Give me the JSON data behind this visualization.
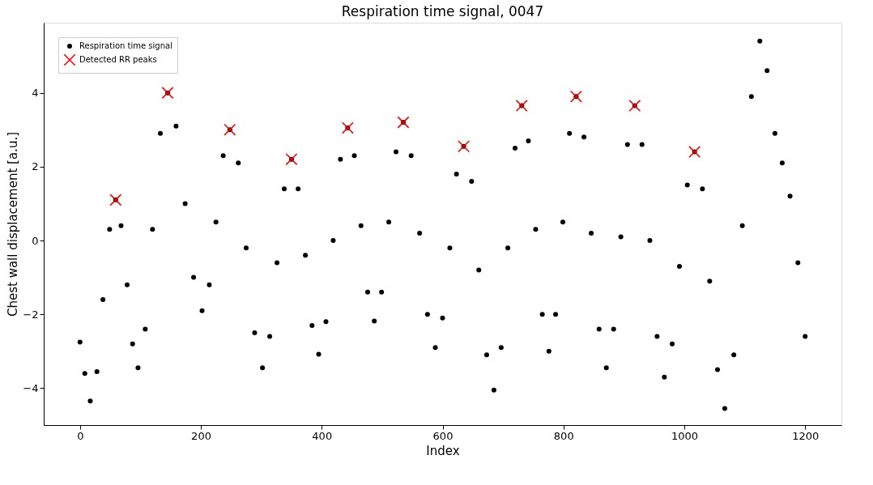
{
  "chart_data": {
    "type": "scatter",
    "title": "Respiration time signal, 0047",
    "xlabel": "Index",
    "ylabel": "Chest wall displacement [a.u.]",
    "xlim": [
      -60,
      1260
    ],
    "ylim": [
      -5.0,
      5.9
    ],
    "xticks": [
      0,
      200,
      400,
      600,
      800,
      1000,
      1200
    ],
    "yticks": [
      -4,
      -2,
      0,
      2,
      4
    ],
    "grid": false,
    "legend": "top left",
    "series": [
      {
        "name": "Respiration time signal",
        "color": "#000000",
        "marker": "circle",
        "x": [
          0,
          8,
          17,
          28,
          38,
          49,
          59,
          68,
          78,
          87,
          96,
          108,
          120,
          133,
          145,
          159,
          174,
          188,
          202,
          214,
          225,
          237,
          248,
          262,
          275,
          289,
          302,
          314,
          326,
          338,
          350,
          361,
          373,
          384,
          395,
          407,
          419,
          431,
          443,
          454,
          465,
          476,
          487,
          499,
          511,
          523,
          535,
          548,
          562,
          575,
          588,
          600,
          612,
          623,
          635,
          648,
          660,
          673,
          685,
          697,
          708,
          720,
          731,
          742,
          754,
          765,
          776,
          787,
          799,
          810,
          821,
          834,
          846,
          859,
          871,
          883,
          895,
          906,
          918,
          930,
          943,
          955,
          967,
          980,
          992,
          1005,
          1017,
          1030,
          1042,
          1055,
          1067,
          1082,
          1096,
          1111,
          1125,
          1137,
          1150,
          1162,
          1175,
          1188,
          1200
        ],
        "values": [
          -2.75,
          -3.6,
          -4.35,
          -3.55,
          -1.6,
          0.3,
          1.1,
          0.4,
          -1.2,
          -2.8,
          -3.45,
          -2.4,
          0.3,
          2.9,
          4.0,
          3.1,
          1.0,
          -1.0,
          -1.9,
          -1.2,
          0.5,
          2.3,
          3.0,
          2.1,
          -0.2,
          -2.5,
          -3.45,
          -2.6,
          -0.6,
          1.4,
          2.2,
          1.4,
          -0.4,
          -2.3,
          -3.08,
          -2.2,
          0.0,
          2.2,
          3.05,
          2.3,
          0.4,
          -1.4,
          -2.18,
          -1.4,
          0.5,
          2.4,
          3.2,
          2.3,
          0.2,
          -2.0,
          -2.9,
          -2.1,
          -0.2,
          1.8,
          2.55,
          1.6,
          -0.8,
          -3.1,
          -4.05,
          -2.9,
          -0.2,
          2.5,
          3.65,
          2.7,
          0.3,
          -2.0,
          -3.0,
          -2.0,
          0.5,
          2.9,
          3.9,
          2.8,
          0.2,
          -2.4,
          -3.45,
          -2.4,
          0.1,
          2.6,
          3.65,
          2.6,
          0.0,
          -2.6,
          -3.7,
          -2.8,
          -0.7,
          1.5,
          2.4,
          1.4,
          -1.1,
          -3.5,
          -4.55,
          -3.1,
          0.4,
          3.9,
          5.4,
          4.6,
          2.9,
          2.1,
          1.2,
          -0.6,
          -2.6
        ]
      },
      {
        "name": "Detected RR peaks",
        "color": "#ff0000",
        "marker": "cross",
        "x": [
          59,
          145,
          248,
          350,
          443,
          535,
          635,
          731,
          821,
          918,
          1017
        ],
        "values": [
          1.1,
          4.0,
          3.0,
          2.2,
          3.05,
          3.2,
          2.55,
          3.65,
          3.9,
          3.65,
          2.4
        ]
      }
    ]
  }
}
